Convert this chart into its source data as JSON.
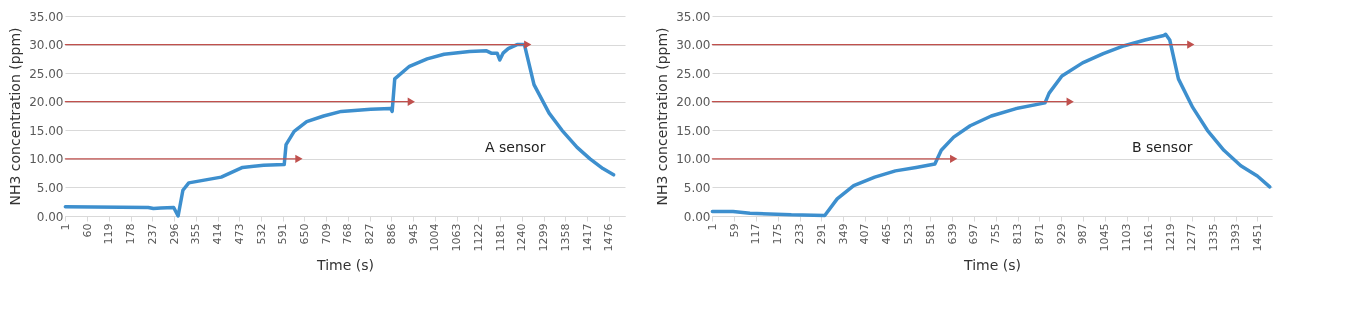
{
  "chart_data": [
    {
      "type": "line",
      "xlabel": "Time (s)",
      "ylabel": "NH3 concentration (ppm)",
      "annotations": [
        "A sensor"
      ],
      "grid": "y",
      "xlim": [
        0,
        1520
      ],
      "xticks": [
        1,
        60,
        119,
        178,
        237,
        296,
        355,
        414,
        473,
        532,
        591,
        650,
        709,
        768,
        827,
        886,
        945,
        1004,
        1063,
        1122,
        1181,
        1240,
        1299,
        1358,
        1417,
        1476
      ],
      "ylim": [
        0,
        35
      ],
      "yticks": [
        {
          "value": 0,
          "label": "0.00"
        },
        {
          "value": 5,
          "label": "5.00"
        },
        {
          "value": 10,
          "label": "10.00"
        },
        {
          "value": 15,
          "label": "15.00"
        },
        {
          "value": 20,
          "label": "20.00"
        },
        {
          "value": 25,
          "label": "25.00"
        },
        {
          "value": 30,
          "label": "30.00"
        },
        {
          "value": 35,
          "label": "35.00"
        }
      ],
      "series": [
        {
          "color": "#3d8fce",
          "x": [
            1,
            226,
            240,
            260,
            295,
            307,
            320,
            336,
            424,
            482,
            539,
            595,
            600,
            622,
            656,
            702,
            750,
            830,
            884,
            888,
            895,
            935,
            983,
            1029,
            1098,
            1144,
            1157,
            1173,
            1180,
            1189,
            1203,
            1227,
            1247,
            1273,
            1314,
            1349,
            1390,
            1425,
            1460,
            1489
          ],
          "values": [
            1.6,
            1.5,
            1.3,
            1.4,
            1.5,
            0.0,
            4.5,
            5.8,
            6.8,
            8.5,
            8.9,
            9.0,
            12.5,
            14.8,
            16.5,
            17.5,
            18.3,
            18.7,
            18.8,
            18.3,
            24.0,
            26.2,
            27.5,
            28.3,
            28.8,
            28.9,
            28.5,
            28.5,
            27.3,
            28.5,
            29.3,
            30.0,
            30.0,
            23.0,
            18.0,
            15.0,
            12.0,
            10.0,
            8.3,
            7.2
          ]
        },
        {
          "color": "#c0504d",
          "marker": "triangle",
          "x": [
            1,
            635
          ],
          "values": [
            10,
            10
          ]
        },
        {
          "color": "#c0504d",
          "marker": "triangle",
          "x": [
            1,
            940
          ],
          "values": [
            20,
            20
          ]
        },
        {
          "color": "#c0504d",
          "marker": "triangle",
          "x": [
            1,
            1256
          ],
          "values": [
            30,
            30
          ]
        }
      ]
    },
    {
      "type": "line",
      "xlabel": "Time (s)",
      "ylabel": "NH3 concentration (ppm)",
      "annotations": [
        "B sensor"
      ],
      "grid": "y",
      "xlim": [
        0,
        1490
      ],
      "xticks": [
        1,
        59,
        117,
        175,
        233,
        291,
        349,
        407,
        465,
        523,
        581,
        639,
        697,
        755,
        813,
        871,
        929,
        987,
        1045,
        1103,
        1161,
        1219,
        1277,
        1335,
        1393,
        1451
      ],
      "ylim": [
        0,
        35
      ],
      "yticks": [
        {
          "value": 0,
          "label": "0.00"
        },
        {
          "value": 5,
          "label": "5.00"
        },
        {
          "value": 10,
          "label": "10.00"
        },
        {
          "value": 15,
          "label": "15.00"
        },
        {
          "value": 20,
          "label": "20.00"
        },
        {
          "value": 25,
          "label": "25.00"
        },
        {
          "value": 30,
          "label": "30.00"
        },
        {
          "value": 35,
          "label": "35.00"
        }
      ],
      "series": [
        {
          "color": "#3d8fce",
          "x": [
            1,
            56,
            101,
            211,
            300,
            333,
            377,
            433,
            488,
            543,
            593,
            610,
            643,
            687,
            743,
            809,
            886,
            897,
            931,
            986,
            1041,
            1097,
            1152,
            1202,
            1207,
            1218,
            1241,
            1279,
            1318,
            1362,
            1407,
            1451,
            1484
          ],
          "values": [
            0.8,
            0.8,
            0.5,
            0.2,
            0.1,
            3.0,
            5.3,
            6.8,
            7.9,
            8.5,
            9.1,
            11.5,
            13.8,
            15.8,
            17.5,
            18.8,
            19.8,
            21.5,
            24.5,
            26.8,
            28.4,
            29.8,
            30.8,
            31.6,
            31.8,
            30.8,
            24.0,
            19.0,
            15.0,
            11.5,
            8.8,
            7.0,
            5.1
          ]
        },
        {
          "color": "#c0504d",
          "marker": "triangle",
          "x": [
            1,
            643
          ],
          "values": [
            10,
            10
          ]
        },
        {
          "color": "#c0504d",
          "marker": "triangle",
          "x": [
            1,
            953
          ],
          "values": [
            20,
            20
          ]
        },
        {
          "color": "#c0504d",
          "marker": "triangle",
          "x": [
            1,
            1274
          ],
          "values": [
            30,
            30
          ]
        }
      ]
    }
  ]
}
